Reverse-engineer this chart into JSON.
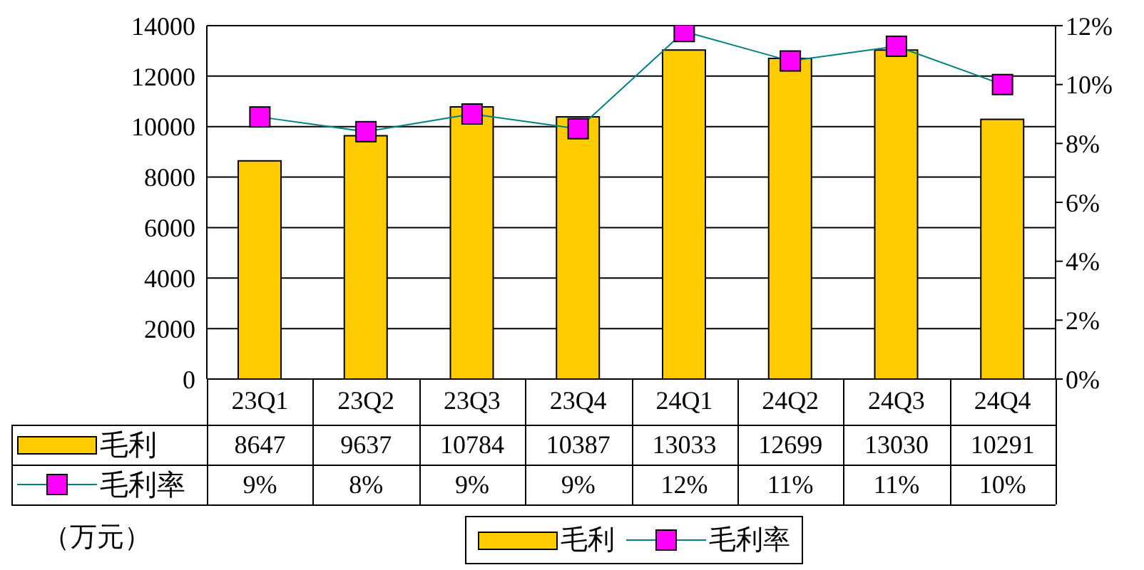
{
  "chart_data": {
    "type": "bar",
    "categories": [
      "23Q1",
      "23Q2",
      "23Q3",
      "23Q4",
      "24Q1",
      "24Q2",
      "24Q3",
      "24Q4"
    ],
    "series": [
      {
        "name": "毛利",
        "color": "#ffcc00",
        "values": [
          8647,
          9637,
          10784,
          10387,
          13033,
          12699,
          13030,
          10291
        ],
        "value_labels": [
          "8647",
          "9637",
          "10784",
          "10387",
          "13033",
          "12699",
          "13030",
          "10291"
        ]
      },
      {
        "name": "毛利率",
        "type": "line",
        "axis": "y2",
        "color": "#ff00ff",
        "values": [
          8.9,
          8.4,
          9.0,
          8.5,
          11.8,
          10.8,
          11.3,
          10.0
        ],
        "value_labels": [
          "9%",
          "8%",
          "9%",
          "9%",
          "12%",
          "11%",
          "11%",
          "10%"
        ]
      }
    ],
    "ylim": [
      0,
      14000
    ],
    "yticks": [
      0,
      2000,
      4000,
      6000,
      8000,
      10000,
      12000,
      14000
    ],
    "y2lim": [
      0,
      12
    ],
    "y2ticks": [
      {
        "value": 0,
        "label": "0%"
      },
      {
        "value": 2,
        "label": "2%"
      },
      {
        "value": 4,
        "label": "4%"
      },
      {
        "value": 6,
        "label": "6%"
      },
      {
        "value": 8,
        "label": "8%"
      },
      {
        "value": 10,
        "label": "10%"
      },
      {
        "value": 12,
        "label": "12%"
      }
    ],
    "grid": "y",
    "legend": "bottom",
    "marker": "square",
    "line_style": "solid",
    "annotations": [
      "（万元）"
    ]
  }
}
